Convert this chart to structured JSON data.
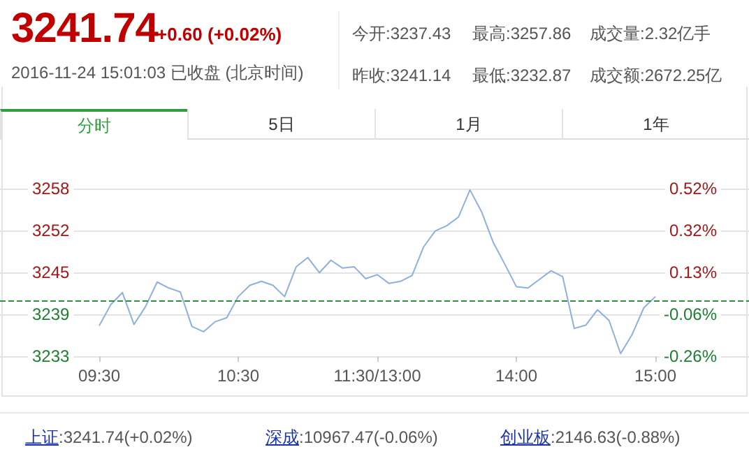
{
  "chart_data": {
    "type": "line",
    "title": "3241.74",
    "annotations": [
      "+0.60 (+0.02%)",
      "2016-11-24 15:01:03 已收盘 (北京时间)",
      "今开:3237.43",
      "最高:3257.86",
      "成交量:2.32亿手",
      "昨收:3241.14",
      "最低:3232.87",
      "成交额:2672.25亿",
      "分时",
      "5日",
      "1月",
      "1年",
      "上证",
      ":3241.74(+0.02%)",
      "深成",
      ":10967.47(-0.06%)",
      "创业板",
      ":2146.63(-0.88%)"
    ],
    "categories": [
      "09:30",
      null,
      null,
      null,
      null,
      null,
      null,
      null,
      null,
      null,
      null,
      null,
      "10:30",
      null,
      null,
      null,
      null,
      null,
      null,
      null,
      null,
      null,
      null,
      null,
      "11:30/13:00",
      null,
      null,
      null,
      null,
      null,
      null,
      null,
      null,
      null,
      null,
      null,
      "14:00",
      null,
      null,
      null,
      null,
      null,
      null,
      null,
      null,
      null,
      null,
      null,
      "15:00"
    ],
    "series": [
      {
        "color": "#8fb0de",
        "values": [
          3237.3,
          3240.5,
          3242.3,
          3237.5,
          3240.2,
          3243.9,
          3243.0,
          3242.4,
          3237.2,
          3236.4,
          3237.9,
          3238.5,
          3241.7,
          3243.4,
          3244.0,
          3243.4,
          3241.7,
          3246.2,
          3247.6,
          3245.3,
          3247.2,
          3246.0,
          3246.2,
          3244.4,
          3245.0,
          3243.7,
          3244.0,
          3244.9,
          3249.2,
          3251.6,
          3252.4,
          3253.7,
          3257.8,
          3254.5,
          3249.9,
          3246.6,
          3243.2,
          3243.0,
          3244.3,
          3245.6,
          3244.7,
          3236.9,
          3237.4,
          3239.7,
          3238.1,
          3233.1,
          3236.0,
          3240.0,
          3241.7
        ]
      }
    ],
    "ylim": [
      3232.7,
      3258.0
    ],
    "yticks": [
      {
        "value": 3232.7,
        "label": "3233"
      },
      {
        "value": 3239.025,
        "label": "3239"
      },
      {
        "value": 3245.35,
        "label": "3245"
      },
      {
        "value": 3251.675,
        "label": "3252"
      },
      {
        "value": 3258.0,
        "label": "3258"
      }
    ],
    "y2lim": [
      -0.26,
      0.52
    ],
    "y2ticks": [
      {
        "value": -0.26,
        "label": "-0.26%"
      },
      {
        "value": -0.065,
        "label": "-0.06%"
      },
      {
        "value": 0.13,
        "label": "0.13%"
      },
      {
        "value": 0.325,
        "label": "0.32%"
      },
      {
        "value": 0.52,
        "label": "0.52%"
      }
    ],
    "ref_lines": [
      {
        "axis": "y",
        "value": 3241.14,
        "color": "#2f8f3f",
        "line_style": "dashed"
      }
    ],
    "grid": "y",
    "marker": "none",
    "line_style": "solid"
  }
}
